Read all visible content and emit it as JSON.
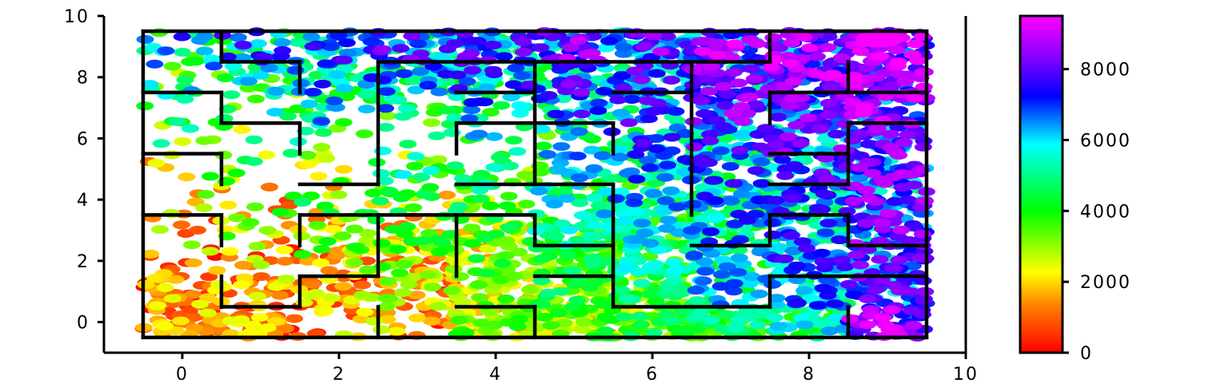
{
  "chart_data": {
    "type": "scatter",
    "title": "",
    "xlabel": "",
    "ylabel": "",
    "xlim": [
      -1,
      10
    ],
    "ylim": [
      -1,
      10
    ],
    "x_ticks": [
      "0",
      "2",
      "4",
      "6",
      "8",
      "10"
    ],
    "y_ticks": [
      "0",
      "2",
      "4",
      "6",
      "8",
      "10"
    ],
    "grid": false,
    "colormap": "gist_rainbow (red → orange → yellow → green → cyan → blue → purple → magenta)",
    "colorbar": {
      "range": [
        0,
        9500
      ],
      "ticks": [
        "0",
        "2000",
        "4000",
        "6000",
        "8000"
      ],
      "colors": [
        "#ff0000",
        "#ff8000",
        "#ffff00",
        "#00ff00",
        "#00ffff",
        "#0000ff",
        "#8800ff",
        "#ff00ff"
      ]
    },
    "maze_walls": [
      [
        [
          -0.5,
          -0.5
        ],
        [
          9.5,
          -0.5
        ]
      ],
      [
        [
          -0.5,
          9.5
        ],
        [
          9.5,
          9.5
        ]
      ],
      [
        [
          -0.5,
          -0.5
        ],
        [
          -0.5,
          9.5
        ]
      ],
      [
        [
          9.5,
          -0.5
        ],
        [
          9.5,
          9.5
        ]
      ],
      [
        [
          0.5,
          9.5
        ],
        [
          0.5,
          8.5
        ]
      ],
      [
        [
          0.5,
          8.5
        ],
        [
          1.5,
          8.5
        ]
      ],
      [
        [
          1.5,
          8.5
        ],
        [
          1.5,
          7.5
        ]
      ],
      [
        [
          -0.5,
          7.5
        ],
        [
          0.5,
          7.5
        ]
      ],
      [
        [
          0.5,
          7.5
        ],
        [
          0.5,
          6.5
        ]
      ],
      [
        [
          0.5,
          6.5
        ],
        [
          1.5,
          6.5
        ]
      ],
      [
        [
          1.5,
          6.5
        ],
        [
          1.5,
          5.5
        ]
      ],
      [
        [
          -0.5,
          5.5
        ],
        [
          0.5,
          5.5
        ]
      ],
      [
        [
          0.5,
          5.5
        ],
        [
          0.5,
          4.5
        ]
      ],
      [
        [
          1.5,
          4.5
        ],
        [
          2.5,
          4.5
        ]
      ],
      [
        [
          2.5,
          4.5
        ],
        [
          2.5,
          8.5
        ]
      ],
      [
        [
          2.5,
          8.5
        ],
        [
          7.5,
          8.5
        ]
      ],
      [
        [
          7.5,
          8.5
        ],
        [
          7.5,
          9.5
        ]
      ],
      [
        [
          -0.5,
          3.5
        ],
        [
          0.5,
          3.5
        ]
      ],
      [
        [
          0.5,
          3.5
        ],
        [
          0.5,
          2.5
        ]
      ],
      [
        [
          1.5,
          2.5
        ],
        [
          1.5,
          3.5
        ]
      ],
      [
        [
          1.5,
          3.5
        ],
        [
          4.5,
          3.5
        ]
      ],
      [
        [
          4.5,
          3.5
        ],
        [
          4.5,
          2.5
        ]
      ],
      [
        [
          4.5,
          2.5
        ],
        [
          5.5,
          2.5
        ]
      ],
      [
        [
          0.5,
          1.5
        ],
        [
          0.5,
          0.5
        ]
      ],
      [
        [
          0.5,
          0.5
        ],
        [
          1.5,
          0.5
        ]
      ],
      [
        [
          1.5,
          0.5
        ],
        [
          1.5,
          1.5
        ]
      ],
      [
        [
          1.5,
          1.5
        ],
        [
          2.5,
          1.5
        ]
      ],
      [
        [
          2.5,
          1.5
        ],
        [
          2.5,
          3.5
        ]
      ],
      [
        [
          2.5,
          -0.5
        ],
        [
          2.5,
          0.5
        ]
      ],
      [
        [
          3.5,
          0.5
        ],
        [
          4.5,
          0.5
        ]
      ],
      [
        [
          4.5,
          0.5
        ],
        [
          4.5,
          -0.5
        ]
      ],
      [
        [
          3.5,
          1.5
        ],
        [
          3.5,
          3.5
        ]
      ],
      [
        [
          4.5,
          1.5
        ],
        [
          5.5,
          1.5
        ]
      ],
      [
        [
          3.5,
          4.5
        ],
        [
          5.5,
          4.5
        ]
      ],
      [
        [
          5.5,
          4.5
        ],
        [
          5.5,
          0.5
        ]
      ],
      [
        [
          5.5,
          0.5
        ],
        [
          6.5,
          0.5
        ]
      ],
      [
        [
          6.5,
          0.5
        ],
        [
          7.5,
          0.5
        ]
      ],
      [
        [
          7.5,
          0.5
        ],
        [
          7.5,
          1.5
        ]
      ],
      [
        [
          3.5,
          5.5
        ],
        [
          3.5,
          6.5
        ]
      ],
      [
        [
          3.5,
          6.5
        ],
        [
          5.5,
          6.5
        ]
      ],
      [
        [
          5.5,
          6.5
        ],
        [
          5.5,
          5.5
        ]
      ],
      [
        [
          3.5,
          7.5
        ],
        [
          4.5,
          7.5
        ]
      ],
      [
        [
          4.5,
          8.5
        ],
        [
          4.5,
          4.5
        ]
      ],
      [
        [
          5.5,
          7.5
        ],
        [
          6.5,
          7.5
        ]
      ],
      [
        [
          6.5,
          8.5
        ],
        [
          6.5,
          3.5
        ]
      ],
      [
        [
          6.5,
          2.5
        ],
        [
          7.5,
          2.5
        ]
      ],
      [
        [
          7.5,
          2.5
        ],
        [
          7.5,
          3.5
        ]
      ],
      [
        [
          7.5,
          3.5
        ],
        [
          8.5,
          3.5
        ]
      ],
      [
        [
          8.5,
          3.5
        ],
        [
          8.5,
          2.5
        ]
      ],
      [
        [
          8.5,
          2.5
        ],
        [
          9.5,
          2.5
        ]
      ],
      [
        [
          7.5,
          1.5
        ],
        [
          9.5,
          1.5
        ]
      ],
      [
        [
          8.5,
          0.5
        ],
        [
          8.5,
          -0.5
        ]
      ],
      [
        [
          7.5,
          7.5
        ],
        [
          7.5,
          6.5
        ]
      ],
      [
        [
          7.5,
          7.5
        ],
        [
          9.5,
          7.5
        ]
      ],
      [
        [
          8.5,
          8.5
        ],
        [
          8.5,
          7.5
        ]
      ],
      [
        [
          7.5,
          5.5
        ],
        [
          8.5,
          5.5
        ]
      ],
      [
        [
          8.5,
          6.5
        ],
        [
          8.5,
          4.5
        ]
      ],
      [
        [
          8.5,
          6.5
        ],
        [
          9.5,
          6.5
        ]
      ],
      [
        [
          7.5,
          4.5
        ],
        [
          8.5,
          4.5
        ]
      ]
    ],
    "scatter_density": [
      [
        0.75,
        0.6,
        0.25,
        0.3,
        0.85,
        0.9,
        0.95,
        1.0,
        0.9,
        0.95
      ],
      [
        0.8,
        0.55,
        0.65,
        0.85,
        0.6,
        0.9,
        0.85,
        0.6,
        0.85,
        0.95
      ],
      [
        0.2,
        0.25,
        0.5,
        0.85,
        0.55,
        0.85,
        0.8,
        0.75,
        0.8,
        0.9
      ],
      [
        0.15,
        0.25,
        0.35,
        0.55,
        0.6,
        0.9,
        0.9,
        0.85,
        0.85,
        0.95
      ],
      [
        0.1,
        0.2,
        0.25,
        0.35,
        0.4,
        0.55,
        0.75,
        0.9,
        0.95,
        0.95
      ],
      [
        0.1,
        0.15,
        0.2,
        0.3,
        0.35,
        0.45,
        0.7,
        0.85,
        0.95,
        0.9
      ],
      [
        0.1,
        0.1,
        0.1,
        0.1,
        0.15,
        0.3,
        0.5,
        0.85,
        0.95,
        0.95
      ],
      [
        0.15,
        0.2,
        0.4,
        0.3,
        0.35,
        0.55,
        0.6,
        0.85,
        0.95,
        0.95
      ],
      [
        0.25,
        0.5,
        0.6,
        0.85,
        0.7,
        0.85,
        0.9,
        0.9,
        0.9,
        0.95
      ],
      [
        0.35,
        0.6,
        0.65,
        0.9,
        0.9,
        0.9,
        0.95,
        0.9,
        0.9,
        0.95
      ]
    ],
    "scatter_value_bands": [
      [
        [
          0,
          2500
        ],
        [
          0,
          2500
        ],
        [
          0,
          3000
        ],
        [
          0,
          3500
        ],
        [
          1500,
          4000
        ],
        [
          1500,
          4500
        ],
        [
          2000,
          5000
        ],
        [
          3000,
          5500
        ],
        [
          3500,
          6500
        ],
        [
          6500,
          9500
        ]
      ],
      [
        [
          0,
          2500
        ],
        [
          0,
          2800
        ],
        [
          0,
          3000
        ],
        [
          500,
          3500
        ],
        [
          1500,
          4000
        ],
        [
          1500,
          5000
        ],
        [
          2500,
          5500
        ],
        [
          3500,
          7000
        ],
        [
          4000,
          7500
        ],
        [
          5500,
          8500
        ]
      ],
      [
        [
          0,
          3000
        ],
        [
          0,
          3500
        ],
        [
          500,
          4000
        ],
        [
          500,
          4000
        ],
        [
          1500,
          4500
        ],
        [
          2500,
          5000
        ],
        [
          3000,
          6000
        ],
        [
          3500,
          7000
        ],
        [
          4000,
          8000
        ],
        [
          5000,
          8500
        ]
      ],
      [
        [
          0,
          3500
        ],
        [
          500,
          4000
        ],
        [
          500,
          4500
        ],
        [
          1000,
          4500
        ],
        [
          1500,
          5000
        ],
        [
          2500,
          6000
        ],
        [
          3000,
          6500
        ],
        [
          3500,
          7500
        ],
        [
          4000,
          8000
        ],
        [
          5000,
          9000
        ]
      ],
      [
        [
          0,
          4000
        ],
        [
          500,
          4500
        ],
        [
          1000,
          5000
        ],
        [
          1500,
          5000
        ],
        [
          2000,
          5500
        ],
        [
          2500,
          6500
        ],
        [
          3000,
          7000
        ],
        [
          3500,
          7500
        ],
        [
          4000,
          8000
        ],
        [
          5000,
          9000
        ]
      ],
      [
        [
          1000,
          5000
        ],
        [
          1500,
          5000
        ],
        [
          2000,
          5500
        ],
        [
          2000,
          6000
        ],
        [
          2500,
          6000
        ],
        [
          3000,
          7000
        ],
        [
          3500,
          7500
        ],
        [
          4000,
          8000
        ],
        [
          4500,
          8500
        ],
        [
          5000,
          9000
        ]
      ],
      [
        [
          1500,
          5500
        ],
        [
          2000,
          6000
        ],
        [
          2500,
          6000
        ],
        [
          2500,
          6500
        ],
        [
          3000,
          7000
        ],
        [
          3000,
          7500
        ],
        [
          3500,
          8000
        ],
        [
          4000,
          8500
        ],
        [
          5000,
          9000
        ],
        [
          5500,
          9000
        ]
      ],
      [
        [
          2000,
          6000
        ],
        [
          2500,
          6500
        ],
        [
          3000,
          7000
        ],
        [
          3000,
          7000
        ],
        [
          3500,
          7500
        ],
        [
          3500,
          8000
        ],
        [
          4000,
          8500
        ],
        [
          4500,
          9000
        ],
        [
          5500,
          9000
        ],
        [
          6000,
          9500
        ]
      ],
      [
        [
          2500,
          7000
        ],
        [
          3000,
          7000
        ],
        [
          3500,
          7500
        ],
        [
          3500,
          7500
        ],
        [
          4000,
          8000
        ],
        [
          4000,
          8500
        ],
        [
          4500,
          8500
        ],
        [
          5000,
          9000
        ],
        [
          6000,
          9500
        ],
        [
          6000,
          9500
        ]
      ],
      [
        [
          3500,
          7500
        ],
        [
          3500,
          8000
        ],
        [
          4000,
          8000
        ],
        [
          4000,
          8500
        ],
        [
          4500,
          8500
        ],
        [
          4500,
          9000
        ],
        [
          5000,
          9000
        ],
        [
          5500,
          9500
        ],
        [
          6000,
          9500
        ],
        [
          6500,
          9500
        ]
      ]
    ],
    "highlight_point": {
      "x": 8.9,
      "y": 9.25,
      "value": 9500
    }
  }
}
